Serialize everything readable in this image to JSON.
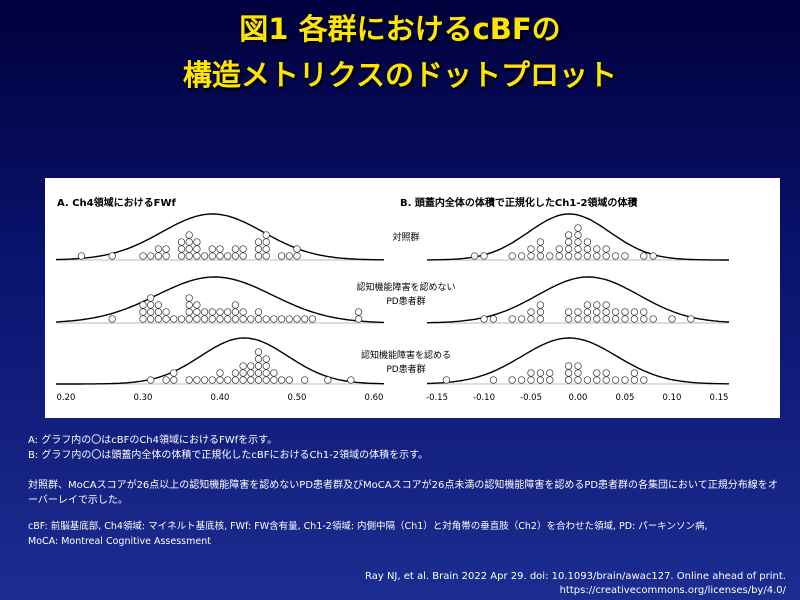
{
  "title": [
    "図1 各群におけるcBFの",
    "構造メトリクスのドットプロット"
  ],
  "figure": {
    "group_labels": [
      [
        "対照群"
      ],
      [
        "認知機能障害を認めない",
        "PD患者群"
      ],
      [
        "認知機能障害を認める",
        "PD患者群"
      ]
    ],
    "panels": [
      {
        "title": "A.  Ch4領域におけるFWf",
        "xlim": [
          0.2,
          0.6
        ],
        "xticks": [
          {
            "value": 0.2,
            "label": "0.20"
          },
          {
            "value": 0.3,
            "label": "0.30"
          },
          {
            "value": 0.4,
            "label": "0.40"
          },
          {
            "value": 0.5,
            "label": "0.50"
          },
          {
            "value": 0.6,
            "label": "0.60"
          }
        ],
        "groups": [
          [
            0.22,
            0.26,
            0.3,
            0.31,
            0.32,
            0.32,
            0.33,
            0.33,
            0.35,
            0.35,
            0.35,
            0.36,
            0.36,
            0.36,
            0.36,
            0.37,
            0.37,
            0.37,
            0.38,
            0.39,
            0.39,
            0.4,
            0.4,
            0.41,
            0.42,
            0.42,
            0.43,
            0.43,
            0.45,
            0.45,
            0.45,
            0.46,
            0.46,
            0.46,
            0.46,
            0.48,
            0.49,
            0.5,
            0.5
          ],
          [
            0.26,
            0.3,
            0.3,
            0.3,
            0.31,
            0.31,
            0.31,
            0.31,
            0.32,
            0.32,
            0.32,
            0.33,
            0.33,
            0.34,
            0.35,
            0.36,
            0.36,
            0.36,
            0.36,
            0.37,
            0.37,
            0.37,
            0.38,
            0.38,
            0.39,
            0.39,
            0.4,
            0.4,
            0.41,
            0.41,
            0.42,
            0.42,
            0.42,
            0.43,
            0.43,
            0.44,
            0.45,
            0.45,
            0.46,
            0.47,
            0.48,
            0.49,
            0.5,
            0.51,
            0.52,
            0.58,
            0.58
          ],
          [
            0.31,
            0.33,
            0.34,
            0.34,
            0.36,
            0.37,
            0.38,
            0.39,
            0.4,
            0.4,
            0.41,
            0.42,
            0.42,
            0.43,
            0.43,
            0.43,
            0.44,
            0.44,
            0.44,
            0.45,
            0.45,
            0.45,
            0.45,
            0.45,
            0.46,
            0.46,
            0.46,
            0.46,
            0.47,
            0.47,
            0.48,
            0.49,
            0.51,
            0.54,
            0.57
          ]
        ]
      },
      {
        "title": "B.  頭蓋内全体の体積で正規化したCh1-2領域の体積",
        "xlim": [
          -0.15,
          0.15
        ],
        "xticks": [
          -0.15,
          {
            "value": -0.1,
            "label": "-0.10"
          },
          -0.05,
          {
            "value": 0,
            "label": "0.00"
          },
          0.05,
          {
            "value": 0.1,
            "label": "0.10"
          },
          0.15
        ],
        "groups": [
          [
            -0.11,
            -0.1,
            -0.07,
            -0.06,
            -0.05,
            -0.05,
            -0.04,
            -0.04,
            -0.04,
            -0.03,
            -0.02,
            -0.02,
            -0.01,
            -0.01,
            -0.01,
            -0.01,
            0.0,
            0.0,
            0.0,
            0.0,
            0.0,
            0.01,
            0.01,
            0.01,
            0.02,
            0.02,
            0.03,
            0.03,
            0.04,
            0.05,
            0.07,
            0.08
          ],
          [
            -0.1,
            -0.09,
            -0.07,
            -0.06,
            -0.05,
            -0.05,
            -0.04,
            -0.04,
            -0.04,
            -0.01,
            -0.01,
            0.0,
            0.0,
            0.01,
            0.01,
            0.01,
            0.02,
            0.02,
            0.02,
            0.03,
            0.03,
            0.03,
            0.04,
            0.04,
            0.05,
            0.05,
            0.06,
            0.06,
            0.07,
            0.07,
            0.08,
            0.1,
            0.12
          ],
          [
            -0.14,
            -0.09,
            -0.07,
            -0.06,
            -0.05,
            -0.05,
            -0.04,
            -0.04,
            -0.03,
            -0.03,
            -0.01,
            -0.01,
            -0.01,
            0.0,
            0.0,
            0.0,
            0.01,
            0.02,
            0.02,
            0.03,
            0.03,
            0.04,
            0.05,
            0.06,
            0.06,
            0.07
          ]
        ]
      }
    ]
  },
  "notes": {
    "legend": [
      "A: グラフ内の〇はcBFのCh4領域におけるFWfを示す。",
      "B: グラフ内の〇は頭蓋内全体の体積で正規化したcBFにおけるCh1-2領域の体積を示す。"
    ],
    "description": "対照群、MoCAスコアが26点以上の認知機能障害を認めないPD患者群及びMoCAスコアが26点未満の認知機能障害を認めるPD患者群の各集団において正規分布線をオーバーレイで示した。",
    "abbreviations": [
      "cBF: 前脳基底部, Ch4領域: マイネルト基底核, FWf: FW含有量, Ch1-2領域: 内側中隔（Ch1）と対角帯の垂直肢（Ch2）を合わせた領域, PD: パーキンソン病,",
      "MoCA: Montreal Cognitive Assessment"
    ]
  },
  "citation": [
    "Ray NJ, et al. Brain 2022 Apr 29. doi: 10.1093/brain/awac127. Online ahead of print.",
    "https://creativecommons.org/licenses/by/4.0/"
  ]
}
